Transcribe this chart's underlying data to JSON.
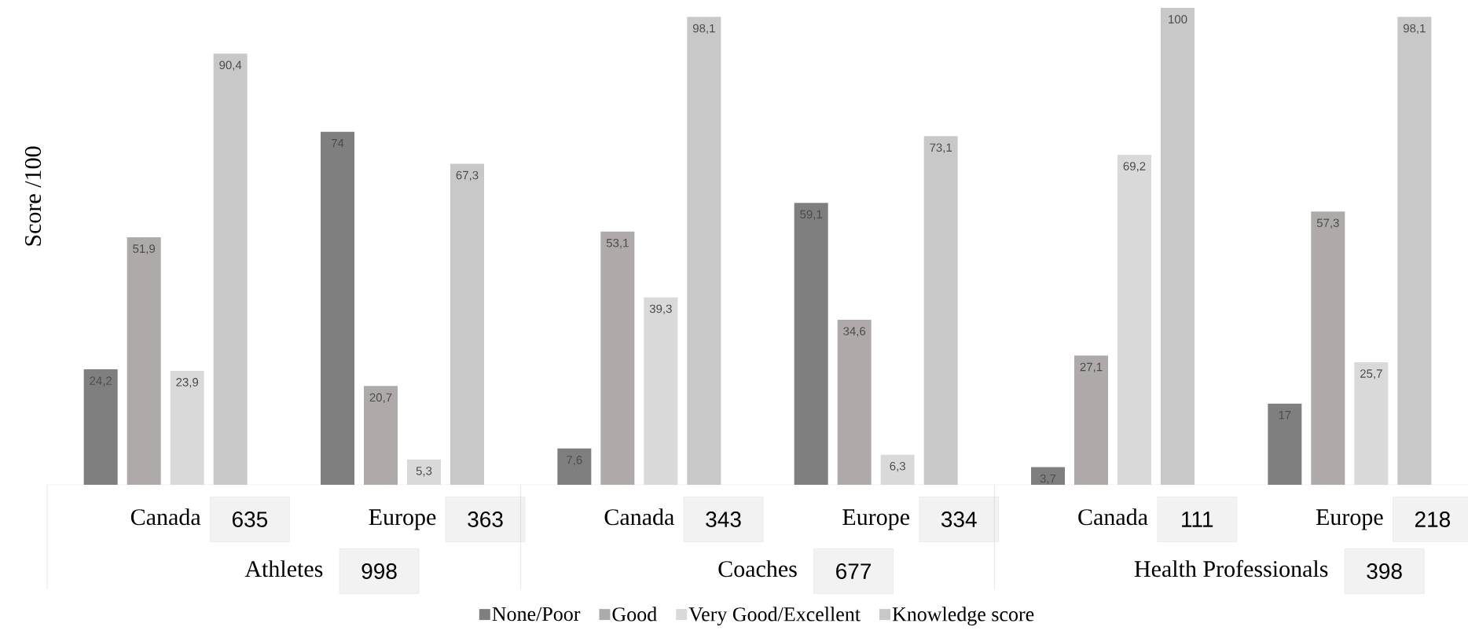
{
  "chart_data": {
    "type": "bar",
    "ylabel": "Score /100",
    "categories": [
      "Canada",
      "Europe",
      "Canada",
      "Europe",
      "Canada",
      "Europe"
    ],
    "series": [
      {
        "name": "None/Poor",
        "color": "#7f7f7f",
        "values": [
          24.2,
          74,
          7.6,
          59.1,
          3.7,
          17
        ],
        "value_labels": [
          "24,2",
          "74",
          "7,6",
          "59,1",
          "3,7",
          "17"
        ]
      },
      {
        "name": "Good",
        "color": "#aeaaaa",
        "values": [
          51.9,
          20.7,
          53.1,
          34.6,
          27.1,
          57.3
        ],
        "value_labels": [
          "51,9",
          "20,7",
          "53,1",
          "34,6",
          "27,1",
          "57,3"
        ]
      },
      {
        "name": "Very Good/Excellent",
        "color": "#d9d9d9",
        "values": [
          23.9,
          5.3,
          39.3,
          6.3,
          69.2,
          25.7
        ],
        "value_labels": [
          "23,9",
          "5,3",
          "39,3",
          "6,3",
          "69,2",
          "25,7"
        ]
      },
      {
        "name": "Knowledge score",
        "color": "#c8c8c8",
        "values": [
          90.4,
          67.3,
          98.1,
          73.1,
          100,
          98.1
        ],
        "value_labels": [
          "90,4",
          "67,3",
          "98,1",
          "73,1",
          "100",
          "98,1"
        ]
      }
    ],
    "ylim": [
      0,
      100
    ],
    "legend": "bottom",
    "annotations": [
      "635",
      "363",
      "343",
      "334",
      "111",
      "218",
      "Athletes",
      "998",
      "Coaches",
      "677",
      "Health Professionals",
      "398"
    ]
  }
}
